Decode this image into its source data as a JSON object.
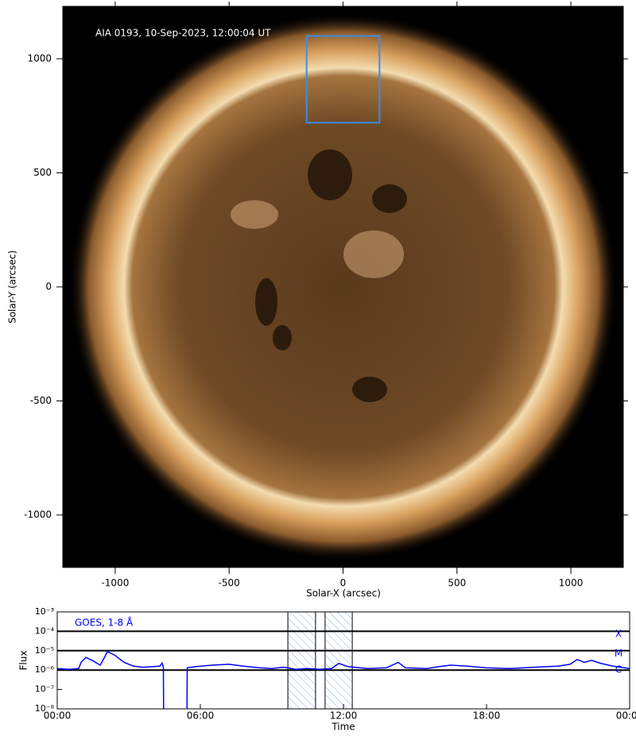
{
  "chart_data": [
    {
      "type": "image",
      "title": "AIA 0193, 10-Sep-2023, 12:00:04 UT",
      "xlabel": "Solar-X (arcsec)",
      "ylabel": "Solar-Y (arcsec)",
      "xlim": [
        -1230,
        1230
      ],
      "ylim": [
        -1230,
        1230
      ],
      "xticks": [
        -1000,
        -500,
        0,
        500,
        1000
      ],
      "yticks": [
        -1000,
        -500,
        0,
        500,
        1000
      ],
      "box": {
        "x": [
          -160,
          160
        ],
        "y": [
          720,
          1100
        ],
        "color": "#3a8ee6"
      }
    },
    {
      "type": "line",
      "xlabel": "Time",
      "ylabel": "Flux",
      "xlim": [
        0,
        24
      ],
      "ylim": [
        1e-08,
        0.001
      ],
      "log_y": true,
      "xticks": [
        {
          "value": 0,
          "label": "00:00"
        },
        {
          "value": 6,
          "label": "06:00"
        },
        {
          "value": 12,
          "label": "12:00"
        },
        {
          "value": 18,
          "label": "18:00"
        },
        {
          "value": 24,
          "label": "00:00"
        }
      ],
      "yticks": [
        {
          "value": 0.001,
          "label": "10⁻³"
        },
        {
          "value": 0.0001,
          "label": "10⁻⁴"
        },
        {
          "value": 1e-05,
          "label": "10⁻⁵"
        },
        {
          "value": 1e-06,
          "label": "10⁻⁶"
        },
        {
          "value": 1e-07,
          "label": "10⁻⁷"
        },
        {
          "value": 1e-08,
          "label": "10⁻⁸"
        }
      ],
      "levels": [
        {
          "value": 0.0001,
          "label": "X"
        },
        {
          "value": 1e-05,
          "label": "M"
        },
        {
          "value": 1e-06,
          "label": "C"
        }
      ],
      "spans": [
        [
          9.67,
          10.83
        ],
        [
          11.23,
          12.37
        ]
      ],
      "series": [
        {
          "name": "GOES, 1-8 Å",
          "color": "#0000ff",
          "x": [
            0,
            0.5,
            0.9,
            1.0,
            1.2,
            1.5,
            1.8,
            2.0,
            2.1,
            2.4,
            2.8,
            3.2,
            3.6,
            4.0,
            4.3,
            4.4,
            4.45,
            4.46,
            4.95,
            5.44,
            5.45,
            5.8,
            6.5,
            7.2,
            7.8,
            8.5,
            9.0,
            9.5,
            10.0,
            10.5,
            11.0,
            11.5,
            11.8,
            12.2,
            13.0,
            13.8,
            14.3,
            14.6,
            15.5,
            16.0,
            16.5,
            17.2,
            18.0,
            19.0,
            20.0,
            21.0,
            21.5,
            21.8,
            22.1,
            22.4,
            22.8,
            23.3,
            24.0
          ],
          "values": [
            1.2e-06,
            1.1e-06,
            1.2e-06,
            2.5e-06,
            4.5e-06,
            3e-06,
            1.8e-06,
            5e-06,
            9e-06,
            6e-06,
            2.5e-06,
            1.6e-06,
            1.4e-06,
            1.5e-06,
            1.6e-06,
            2.3e-06,
            1.4e-06,
            1e-08,
            null,
            1e-08,
            1.3e-06,
            1.5e-06,
            1.8e-06,
            2e-06,
            1.6e-06,
            1.3e-06,
            1.2e-06,
            1.4e-06,
            1.1e-06,
            1.2e-06,
            1.1e-06,
            1.2e-06,
            2.2e-06,
            1.5e-06,
            1.2e-06,
            1.3e-06,
            2.5e-06,
            1.3e-06,
            1.2e-06,
            1.5e-06,
            1.8e-06,
            1.6e-06,
            1.3e-06,
            1.2e-06,
            1.4e-06,
            1.6e-06,
            2e-06,
            3.5e-06,
            2.5e-06,
            3.2e-06,
            2.2e-06,
            1.6e-06,
            1.2e-06
          ]
        }
      ]
    }
  ]
}
